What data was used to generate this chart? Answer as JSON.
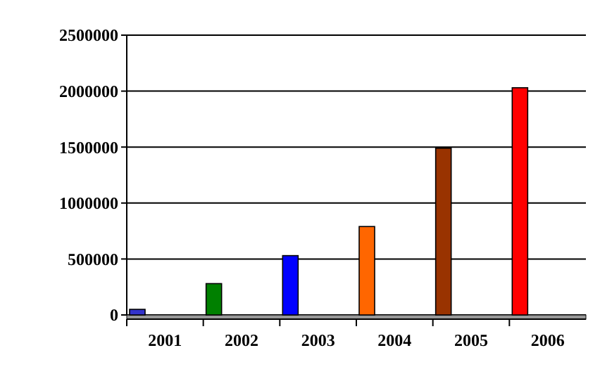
{
  "chart_data": {
    "type": "bar",
    "categories": [
      "2001",
      "2002",
      "2003",
      "2004",
      "2005",
      "2006"
    ],
    "values": [
      50000,
      280000,
      530000,
      790000,
      1490000,
      2030000
    ],
    "colors": [
      "#3333cc",
      "#008000",
      "#0000ff",
      "#ff6600",
      "#993300",
      "#ff0000"
    ],
    "ylim": [
      0,
      2500000
    ],
    "yticks": [
      0,
      500000,
      1000000,
      1500000,
      2000000,
      2500000
    ],
    "grid": "y"
  }
}
